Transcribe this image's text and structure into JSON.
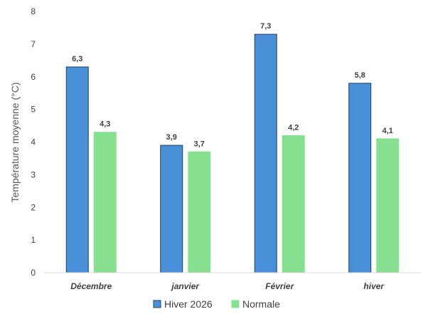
{
  "chart_data": {
    "type": "bar",
    "title": "",
    "xlabel": "",
    "ylabel": "Température moyenne (°C)",
    "ylim": [
      0,
      8
    ],
    "yticks": [
      "0",
      "1",
      "2",
      "3",
      "4",
      "5",
      "6",
      "7",
      "8"
    ],
    "grid": false,
    "legend": "bottom",
    "categories": [
      "Décembre",
      "janvier",
      "Février",
      "hiver"
    ],
    "series": [
      {
        "name": "Hiver 2026",
        "color": "#4a90d9",
        "stroke": "#1f3d66",
        "values": [
          6.3,
          3.9,
          7.3,
          5.8
        ],
        "labels": [
          "6,3",
          "3,9",
          "7,3",
          "5,8"
        ]
      },
      {
        "name": "Normale",
        "color": "#86e08f",
        "stroke": "#86e08f",
        "values": [
          4.3,
          3.7,
          4.2,
          4.1
        ],
        "labels": [
          "4,3",
          "3,7",
          "4,2",
          "4,1"
        ]
      }
    ]
  }
}
